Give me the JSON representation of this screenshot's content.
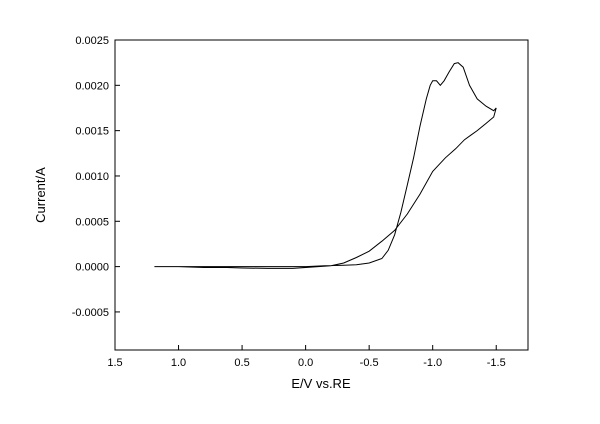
{
  "chart_data": {
    "type": "line",
    "title": "",
    "xlabel": "E/V vs.RE",
    "ylabel": "Current/A",
    "xlim": [
      1.5,
      -1.75
    ],
    "ylim": [
      -0.00092,
      0.0025
    ],
    "x_reversed": true,
    "grid": false,
    "legend": "none",
    "line_color": "#000000",
    "xticks": [
      1.5,
      1.0,
      0.5,
      0.0,
      -0.5,
      -1.0,
      -1.5
    ],
    "xtick_labels": [
      "1.5",
      "1.0",
      "0.5",
      "0.0",
      "-0.5",
      "-1.0",
      "-1.5"
    ],
    "yticks": [
      -0.0005,
      0.0,
      0.0005,
      0.001,
      0.0015,
      0.002,
      0.0025
    ],
    "ytick_labels": [
      "-0.0005",
      "0.0000",
      "0.0005",
      "0.0010",
      "0.0015",
      "0.0020",
      "0.0025"
    ],
    "series": [
      {
        "points": [
          [
            1.19,
            0.0
          ],
          [
            1.0,
            0.0
          ],
          [
            0.8,
            0.0
          ],
          [
            0.6,
            0.0
          ],
          [
            0.4,
            0.0
          ],
          [
            0.2,
            0.0
          ],
          [
            0.0,
            0.0
          ],
          [
            -0.15,
            1e-05
          ],
          [
            -0.3,
            1.5e-05
          ],
          [
            -0.4,
            2e-05
          ],
          [
            -0.5,
            4e-05
          ],
          [
            -0.6,
            9e-05
          ],
          [
            -0.65,
            0.00018
          ],
          [
            -0.7,
            0.00035
          ],
          [
            -0.75,
            0.0006
          ],
          [
            -0.8,
            0.0009
          ],
          [
            -0.85,
            0.0012
          ],
          [
            -0.9,
            0.00155
          ],
          [
            -0.95,
            0.00185
          ],
          [
            -0.98,
            0.002
          ],
          [
            -1.0,
            0.00205
          ],
          [
            -1.03,
            0.00205
          ],
          [
            -1.06,
            0.002
          ],
          [
            -1.09,
            0.00205
          ],
          [
            -1.13,
            0.00215
          ],
          [
            -1.17,
            0.00224
          ],
          [
            -1.2,
            0.00225
          ],
          [
            -1.24,
            0.0022
          ],
          [
            -1.29,
            0.002
          ],
          [
            -1.35,
            0.00185
          ],
          [
            -1.42,
            0.00177
          ],
          [
            -1.48,
            0.00172
          ],
          [
            -1.5,
            0.00175
          ],
          [
            -1.48,
            0.00165
          ],
          [
            -1.42,
            0.00158
          ],
          [
            -1.35,
            0.0015
          ],
          [
            -1.3,
            0.00145
          ],
          [
            -1.25,
            0.0014
          ],
          [
            -1.18,
            0.0013
          ],
          [
            -1.1,
            0.0012
          ],
          [
            -1.0,
            0.00105
          ],
          [
            -0.9,
            0.0008
          ],
          [
            -0.8,
            0.00058
          ],
          [
            -0.7,
            0.0004
          ],
          [
            -0.6,
            0.00028
          ],
          [
            -0.5,
            0.00017
          ],
          [
            -0.4,
            0.0001
          ],
          [
            -0.3,
            4e-05
          ],
          [
            -0.2,
            1e-05
          ],
          [
            -0.1,
            0.0
          ],
          [
            0.1,
            -2e-05
          ],
          [
            0.3,
            -2e-05
          ],
          [
            0.5,
            -1.5e-05
          ],
          [
            0.62,
            -1e-05
          ],
          [
            0.8,
            -1e-05
          ],
          [
            1.0,
            0.0
          ],
          [
            1.19,
            0.0
          ]
        ]
      }
    ]
  }
}
